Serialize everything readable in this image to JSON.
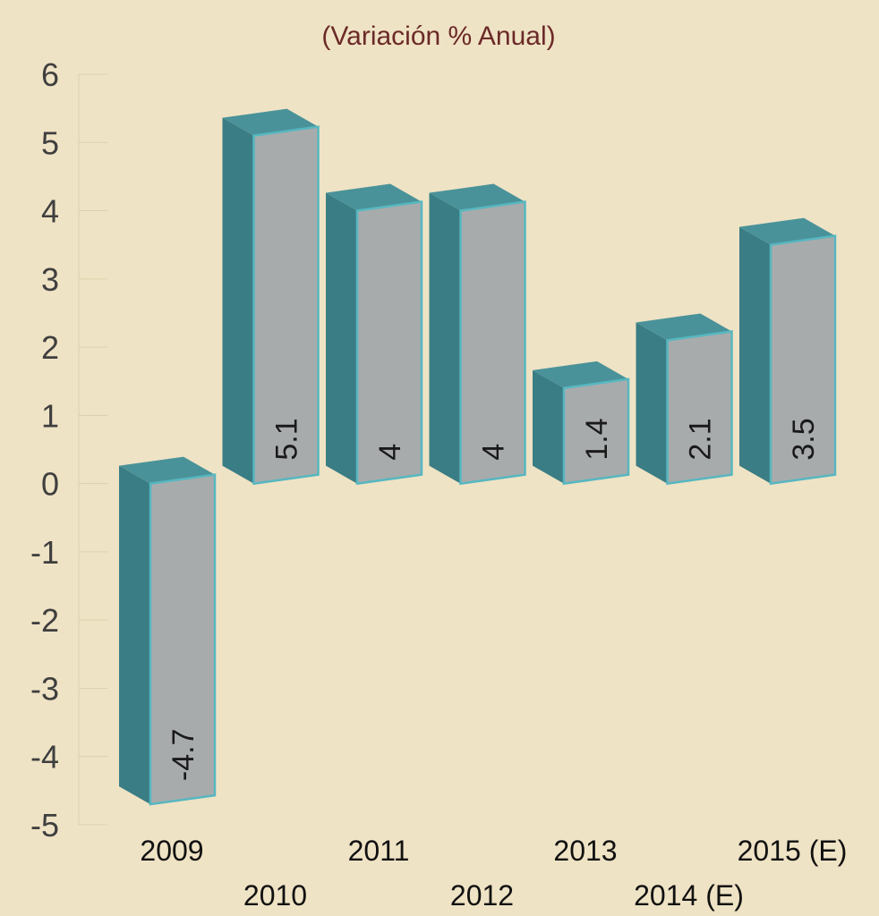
{
  "chart_data": {
    "type": "bar",
    "subtitle": "(Variación % Anual)",
    "categories": [
      "2009",
      "2010",
      "2011",
      "2012",
      "2013",
      "2014 (E)",
      "2015 (E)"
    ],
    "series": [
      {
        "values": [
          -4.7,
          5.1,
          4,
          4,
          1.4,
          2.1,
          3.5
        ]
      }
    ],
    "data_labels": [
      "-4.7",
      "5.1",
      "4",
      "4",
      "1.4",
      "2.1",
      "3.5"
    ],
    "ylim": [
      -5,
      6
    ],
    "yticks": [
      "6",
      "5",
      "4",
      "3",
      "2",
      "1",
      "0",
      "-1",
      "-2",
      "-3",
      "-4",
      "-5"
    ],
    "grid": true,
    "legend": "none",
    "style": "3d",
    "colors": {
      "background": "#efe3c5",
      "bar_front": "#a8abac",
      "bar_side": "#3a7d84",
      "bar_top": "#4a9299",
      "bar_edge": "#57b7c0"
    }
  }
}
